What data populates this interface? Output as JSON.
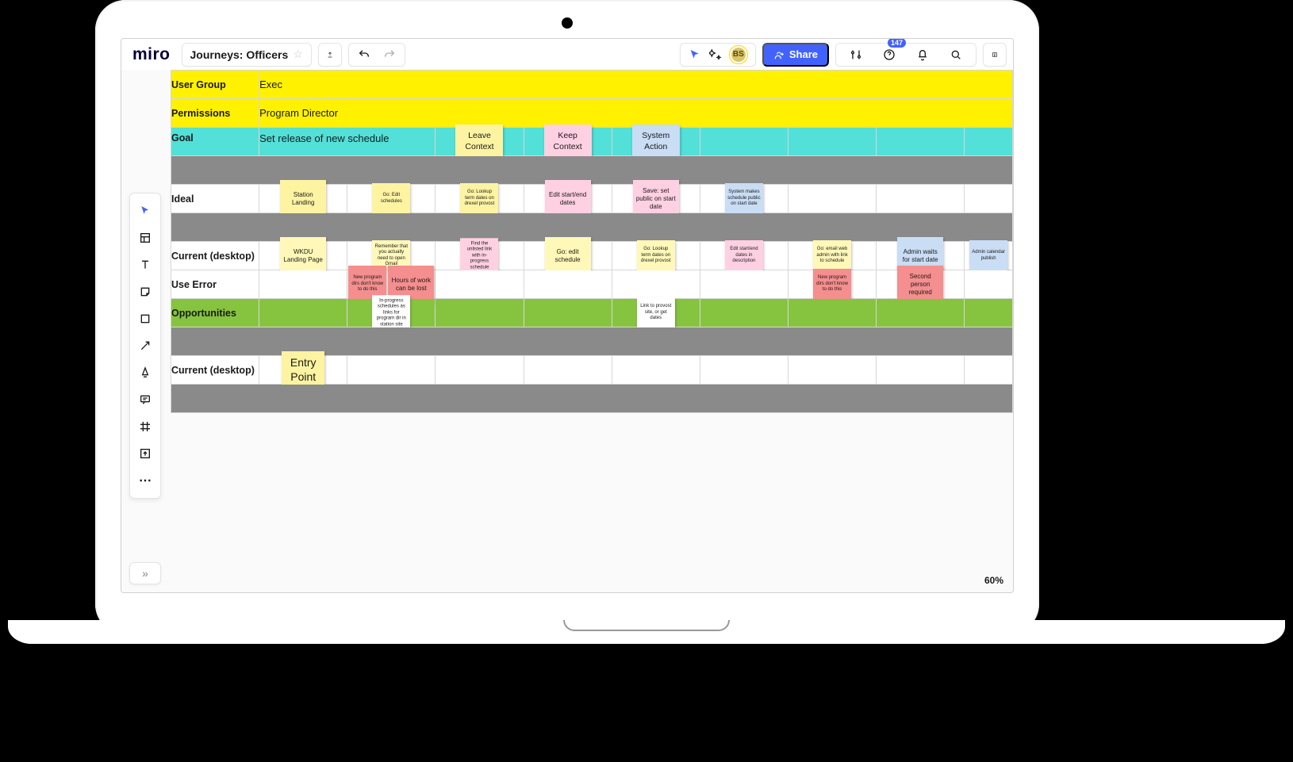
{
  "app": {
    "logo": "miro",
    "board_title": "Journeys: Officers",
    "share_label": "Share",
    "notification_count": "147",
    "avatar_initials": "BS",
    "zoom": "60%"
  },
  "header_rows": {
    "user_group": {
      "label": "User Group",
      "value": "Exec",
      "bg": "#fff100"
    },
    "permissions": {
      "label": "Permissions",
      "value": "Program Director",
      "bg": "#fff100"
    },
    "goal": {
      "label": "Goal",
      "value": "Set release of new schedule",
      "bg": "#52e0d8"
    }
  },
  "goal_notes": {
    "leave": {
      "text": "Leave Context",
      "color": "#fdf3a1"
    },
    "keep": {
      "text": "Keep Context",
      "color": "#ffd0e2"
    },
    "system": {
      "text": "System Action",
      "color": "#c9ddf5"
    }
  },
  "rows": {
    "ideal": {
      "label": "Ideal",
      "bg": "#ffffff"
    },
    "current1": {
      "label": "Current (desktop)",
      "bg": "#ffffff"
    },
    "error": {
      "label": "Use Error",
      "bg": "#ffffff"
    },
    "opportunity": {
      "label": "Opportunities",
      "bg": "#86c440"
    },
    "current2": {
      "label": "Current (desktop)",
      "bg": "#ffffff"
    }
  },
  "notes": {
    "ideal": [
      {
        "col": 1,
        "text": "Station Landing",
        "color": "#fdf3a1",
        "size": "lg"
      },
      {
        "col": 2,
        "text": "Go: Edit schedules",
        "color": "#fdf3a1",
        "size": "sm"
      },
      {
        "col": 3,
        "text": "Go: Lookup term dates on drexel provost",
        "color": "#fdf3a1",
        "size": "sm"
      },
      {
        "col": 4,
        "text": "Edit start/end dates",
        "color": "#ffd0e2",
        "size": "lg"
      },
      {
        "col": 5,
        "text": "Save: set public on start date",
        "color": "#ffd0e2",
        "size": "lg"
      },
      {
        "col": 6,
        "text": "System makes schedule public on start date",
        "color": "#c9ddf5",
        "size": "sm"
      }
    ],
    "current1": [
      {
        "col": 1,
        "text": "WKDU Landing Page",
        "color": "#fff8b8",
        "size": "lg"
      },
      {
        "col": 2,
        "text": "Remember that you actually need to open Gmail",
        "color": "#fff8b8",
        "size": "sm"
      },
      {
        "col": 3,
        "text": "Find the unlisted link with in-progress schedule",
        "color": "#ffd0e2",
        "size": "sm"
      },
      {
        "col": 4,
        "text": "Go: edit schedule",
        "color": "#fff8b8",
        "size": "lg"
      },
      {
        "col": 5,
        "text": "Go: Lookup term dates on drexel provost",
        "color": "#fff8b8",
        "size": "sm"
      },
      {
        "col": 6,
        "text": "Edit start/end dates in description",
        "color": "#ffd0e2",
        "size": "sm"
      },
      {
        "col": 7,
        "text": "Go: email web admin with link to schedule",
        "color": "#fff8b8",
        "size": "sm"
      },
      {
        "col": 8,
        "text": "Admin waits for start date",
        "color": "#c9ddf5",
        "size": "lg"
      },
      {
        "col": 9,
        "text": "Admin calendar publish",
        "color": "#c9ddf5",
        "size": "sm"
      }
    ],
    "error": [
      {
        "col": 2,
        "dual": [
          {
            "text": "New program dirs don't know to do this",
            "color": "#f58e8e",
            "size": "sm"
          },
          {
            "text": "Hours of work can be lost",
            "color": "#f58e8e",
            "size": "lg"
          }
        ]
      },
      {
        "col": 7,
        "text": "New program dirs don't know to do this",
        "color": "#f58e8e",
        "size": "sm"
      },
      {
        "col": 8,
        "text": "Second person required",
        "color": "#f58e8e",
        "size": "lg"
      }
    ],
    "opportunity": [
      {
        "col": 2,
        "text": "In-progress schedules as links for program dir in station site",
        "color": "#ffffff",
        "size": "sm"
      },
      {
        "col": 5,
        "text": "Link to provost site, or get dates",
        "color": "#ffffff",
        "size": "sm"
      }
    ],
    "current2": [
      {
        "col": 1,
        "text": "Entry Point",
        "color": "#fdf3a1",
        "size": "entry"
      }
    ]
  },
  "colors": {
    "yellow": "#fff100",
    "teal": "#52e0d8",
    "green": "#86c440",
    "sep": "#8a8a8a",
    "note_yellow": "#fdf3a1",
    "note_yellow2": "#fff8b8",
    "note_pink": "#ffd0e2",
    "note_blue": "#c9ddf5",
    "note_red": "#f58e8e",
    "note_white": "#ffffff",
    "share": "#4262ff"
  }
}
